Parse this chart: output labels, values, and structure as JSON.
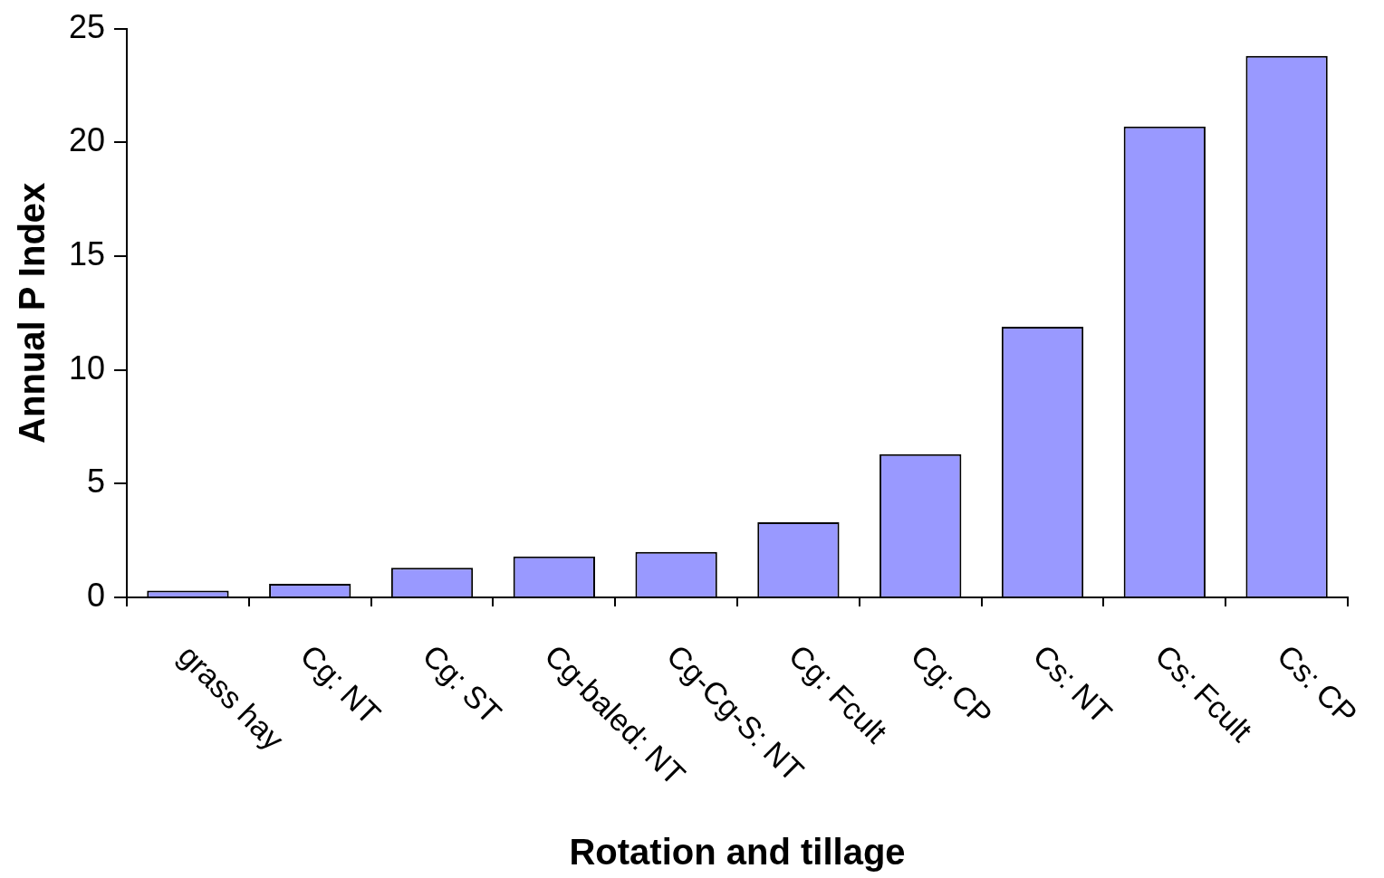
{
  "chart_data": {
    "type": "bar",
    "xlabel": "Rotation and tillage",
    "ylabel": "Annual P Index",
    "categories": [
      "grass hay",
      "Cg: NT",
      "Cg: ST",
      "Cg-baled: NT",
      "Cg-Cg-S: NT",
      "Cg: Fcult",
      "Cg: CP",
      "Cs: NT",
      "Cs: Fcult",
      "Cs: CP"
    ],
    "values": [
      0.3,
      0.6,
      1.3,
      1.8,
      2.0,
      3.3,
      6.3,
      11.9,
      20.7,
      23.8
    ],
    "color": "#9999ff",
    "ylim": [
      0,
      25
    ],
    "yticks": [
      0,
      5,
      10,
      15,
      20,
      25
    ],
    "grid": false,
    "legend": false
  }
}
